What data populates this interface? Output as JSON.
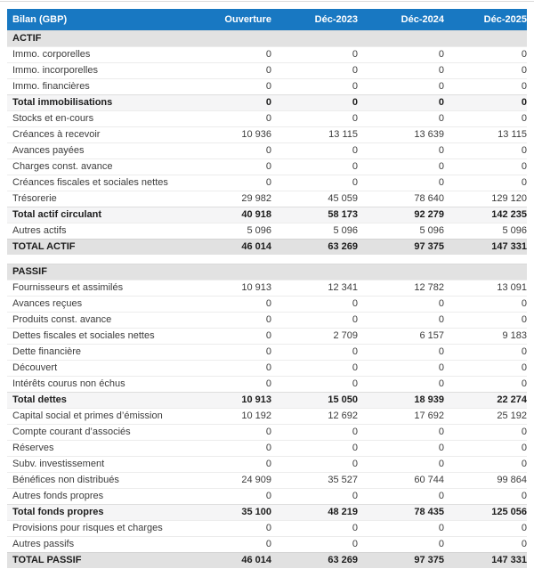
{
  "table": {
    "title": "Bilan (GBP)",
    "columns": [
      "Ouverture",
      "Déc-2023",
      "Déc-2024",
      "Déc-2025"
    ],
    "rows": [
      {
        "type": "section",
        "label": "ACTIF",
        "values": [
          "",
          "",
          "",
          ""
        ]
      },
      {
        "type": "normal",
        "label": "Immo. corporelles",
        "values": [
          "0",
          "0",
          "0",
          "0"
        ]
      },
      {
        "type": "normal",
        "label": "Immo. incorporelles",
        "values": [
          "0",
          "0",
          "0",
          "0"
        ]
      },
      {
        "type": "normal",
        "label": "Immo. financières",
        "values": [
          "0",
          "0",
          "0",
          "0"
        ]
      },
      {
        "type": "subtotal",
        "label": "Total immobilisations",
        "values": [
          "0",
          "0",
          "0",
          "0"
        ]
      },
      {
        "type": "normal",
        "label": "Stocks et en-cours",
        "values": [
          "0",
          "0",
          "0",
          "0"
        ]
      },
      {
        "type": "normal",
        "label": "Créances à recevoir",
        "values": [
          "10 936",
          "13 115",
          "13 639",
          "13 115"
        ]
      },
      {
        "type": "normal",
        "label": "Avances payées",
        "values": [
          "0",
          "0",
          "0",
          "0"
        ]
      },
      {
        "type": "normal",
        "label": "Charges const. avance",
        "values": [
          "0",
          "0",
          "0",
          "0"
        ]
      },
      {
        "type": "normal",
        "label": "Créances fiscales et sociales nettes",
        "values": [
          "0",
          "0",
          "0",
          "0"
        ]
      },
      {
        "type": "normal",
        "label": "Trésorerie",
        "values": [
          "29 982",
          "45 059",
          "78 640",
          "129 120"
        ]
      },
      {
        "type": "subtotal",
        "label": "Total actif circulant",
        "values": [
          "40 918",
          "58 173",
          "92 279",
          "142 235"
        ]
      },
      {
        "type": "normal",
        "label": "Autres actifs",
        "values": [
          "5 096",
          "5 096",
          "5 096",
          "5 096"
        ]
      },
      {
        "type": "total",
        "label": "TOTAL ACTIF",
        "values": [
          "46 014",
          "63 269",
          "97 375",
          "147 331"
        ]
      },
      {
        "type": "gap",
        "label": "",
        "values": [
          "",
          "",
          "",
          ""
        ]
      },
      {
        "type": "section",
        "label": "PASSIF",
        "values": [
          "",
          "",
          "",
          ""
        ]
      },
      {
        "type": "normal",
        "label": "Fournisseurs et assimilés",
        "values": [
          "10 913",
          "12 341",
          "12 782",
          "13 091"
        ]
      },
      {
        "type": "normal",
        "label": "Avances reçues",
        "values": [
          "0",
          "0",
          "0",
          "0"
        ]
      },
      {
        "type": "normal",
        "label": "Produits const. avance",
        "values": [
          "0",
          "0",
          "0",
          "0"
        ]
      },
      {
        "type": "normal",
        "label": "Dettes fiscales et sociales nettes",
        "values": [
          "0",
          "2 709",
          "6 157",
          "9 183"
        ]
      },
      {
        "type": "normal",
        "label": "Dette financière",
        "values": [
          "0",
          "0",
          "0",
          "0"
        ]
      },
      {
        "type": "normal",
        "label": "Découvert",
        "values": [
          "0",
          "0",
          "0",
          "0"
        ]
      },
      {
        "type": "normal",
        "label": "Intérêts courus non échus",
        "values": [
          "0",
          "0",
          "0",
          "0"
        ]
      },
      {
        "type": "subtotal",
        "label": "Total dettes",
        "values": [
          "10 913",
          "15 050",
          "18 939",
          "22 274"
        ]
      },
      {
        "type": "normal",
        "label": "Capital social et primes d’émission",
        "values": [
          "10 192",
          "12 692",
          "17 692",
          "25 192"
        ]
      },
      {
        "type": "normal",
        "label": "Compte courant d’associés",
        "values": [
          "0",
          "0",
          "0",
          "0"
        ]
      },
      {
        "type": "normal",
        "label": "Réserves",
        "values": [
          "0",
          "0",
          "0",
          "0"
        ]
      },
      {
        "type": "normal",
        "label": "Subv. investissement",
        "values": [
          "0",
          "0",
          "0",
          "0"
        ]
      },
      {
        "type": "normal",
        "label": "Bénéfices non distribués",
        "values": [
          "24 909",
          "35 527",
          "60 744",
          "99 864"
        ]
      },
      {
        "type": "normal",
        "label": "Autres fonds propres",
        "values": [
          "0",
          "0",
          "0",
          "0"
        ]
      },
      {
        "type": "subtotal",
        "label": "Total fonds propres",
        "values": [
          "35 100",
          "48 219",
          "78 435",
          "125 056"
        ]
      },
      {
        "type": "normal",
        "label": "Provisions pour risques et charges",
        "values": [
          "0",
          "0",
          "0",
          "0"
        ]
      },
      {
        "type": "normal",
        "label": "Autres passifs",
        "values": [
          "0",
          "0",
          "0",
          "0"
        ]
      },
      {
        "type": "total",
        "label": "TOTAL PASSIF",
        "values": [
          "46 014",
          "63 269",
          "97 375",
          "147 331"
        ]
      }
    ]
  },
  "colors": {
    "header_bg": "#1878c2",
    "header_text": "#ffffff",
    "section_row_bg": "#e2e2e2",
    "subtotal_row_bg": "#f5f5f6",
    "total_row_bg": "#e1e1e1"
  },
  "chart_data": {
    "type": "table",
    "title": "Bilan (GBP)",
    "categories": [
      "Ouverture",
      "Déc-2023",
      "Déc-2024",
      "Déc-2025"
    ],
    "series": [
      {
        "name": "Immo. corporelles",
        "values": [
          0,
          0,
          0,
          0
        ]
      },
      {
        "name": "Immo. incorporelles",
        "values": [
          0,
          0,
          0,
          0
        ]
      },
      {
        "name": "Immo. financières",
        "values": [
          0,
          0,
          0,
          0
        ]
      },
      {
        "name": "Total immobilisations",
        "values": [
          0,
          0,
          0,
          0
        ]
      },
      {
        "name": "Stocks et en-cours",
        "values": [
          0,
          0,
          0,
          0
        ]
      },
      {
        "name": "Créances à recevoir",
        "values": [
          10936,
          13115,
          13639,
          13115
        ]
      },
      {
        "name": "Avances payées",
        "values": [
          0,
          0,
          0,
          0
        ]
      },
      {
        "name": "Charges const. avance",
        "values": [
          0,
          0,
          0,
          0
        ]
      },
      {
        "name": "Créances fiscales et sociales nettes",
        "values": [
          0,
          0,
          0,
          0
        ]
      },
      {
        "name": "Trésorerie",
        "values": [
          29982,
          45059,
          78640,
          129120
        ]
      },
      {
        "name": "Total actif circulant",
        "values": [
          40918,
          58173,
          92279,
          142235
        ]
      },
      {
        "name": "Autres actifs",
        "values": [
          5096,
          5096,
          5096,
          5096
        ]
      },
      {
        "name": "TOTAL ACTIF",
        "values": [
          46014,
          63269,
          97375,
          147331
        ]
      },
      {
        "name": "Fournisseurs et assimilés",
        "values": [
          10913,
          12341,
          12782,
          13091
        ]
      },
      {
        "name": "Avances reçues",
        "values": [
          0,
          0,
          0,
          0
        ]
      },
      {
        "name": "Produits const. avance",
        "values": [
          0,
          0,
          0,
          0
        ]
      },
      {
        "name": "Dettes fiscales et sociales nettes",
        "values": [
          0,
          2709,
          6157,
          9183
        ]
      },
      {
        "name": "Dette financière",
        "values": [
          0,
          0,
          0,
          0
        ]
      },
      {
        "name": "Découvert",
        "values": [
          0,
          0,
          0,
          0
        ]
      },
      {
        "name": "Intérêts courus non échus",
        "values": [
          0,
          0,
          0,
          0
        ]
      },
      {
        "name": "Total dettes",
        "values": [
          10913,
          15050,
          18939,
          22274
        ]
      },
      {
        "name": "Capital social et primes d’émission",
        "values": [
          10192,
          12692,
          17692,
          25192
        ]
      },
      {
        "name": "Compte courant d’associés",
        "values": [
          0,
          0,
          0,
          0
        ]
      },
      {
        "name": "Réserves",
        "values": [
          0,
          0,
          0,
          0
        ]
      },
      {
        "name": "Subv. investissement",
        "values": [
          0,
          0,
          0,
          0
        ]
      },
      {
        "name": "Bénéfices non distribués",
        "values": [
          24909,
          35527,
          60744,
          99864
        ]
      },
      {
        "name": "Autres fonds propres",
        "values": [
          0,
          0,
          0,
          0
        ]
      },
      {
        "name": "Total fonds propres",
        "values": [
          35100,
          48219,
          78435,
          125056
        ]
      },
      {
        "name": "Provisions pour risques et charges",
        "values": [
          0,
          0,
          0,
          0
        ]
      },
      {
        "name": "Autres passifs",
        "values": [
          0,
          0,
          0,
          0
        ]
      },
      {
        "name": "TOTAL PASSIF",
        "values": [
          46014,
          63269,
          97375,
          147331
        ]
      }
    ]
  }
}
